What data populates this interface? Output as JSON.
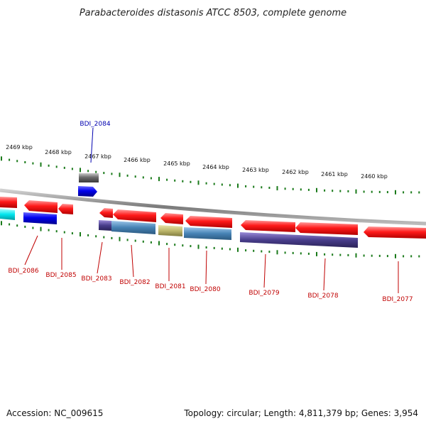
{
  "title": "Parabacteroides distasonis ATCC 8503, complete genome",
  "footer": {
    "accession": "Accession: NC_009615",
    "summary": "Topology: circular; Length: 4,811,379 bp; Genes: 3,954"
  },
  "colors": {
    "backbone": "#8c8c8c",
    "tick": "#1a7a1a",
    "label_red": "#c00000",
    "label_blue": "#0000b0"
  },
  "scale_labels": [
    "2469 kbp",
    "2468 kbp",
    "2467 kbp",
    "2466 kbp",
    "2465 kbp",
    "2464 kbp",
    "2463 kbp",
    "2462 kbp",
    "2461 kbp",
    "2460 kbp"
  ],
  "genes": [
    {
      "label": "BDI_2084",
      "color": "blue",
      "strand": "top"
    },
    {
      "label": "BDI_2086",
      "color": "red",
      "strand": "bottom"
    },
    {
      "label": "BDI_2085",
      "color": "red",
      "strand": "bottom"
    },
    {
      "label": "BDI_2083",
      "color": "red",
      "strand": "bottom"
    },
    {
      "label": "BDI_2082",
      "color": "red",
      "strand": "bottom"
    },
    {
      "label": "BDI_2081",
      "color": "red",
      "strand": "bottom"
    },
    {
      "label": "BDI_2080",
      "color": "red",
      "strand": "bottom"
    },
    {
      "label": "BDI_2079",
      "color": "red",
      "strand": "bottom"
    },
    {
      "label": "BDI_2078",
      "color": "red",
      "strand": "bottom"
    },
    {
      "label": "BDI_2077",
      "color": "red",
      "strand": "bottom"
    }
  ]
}
